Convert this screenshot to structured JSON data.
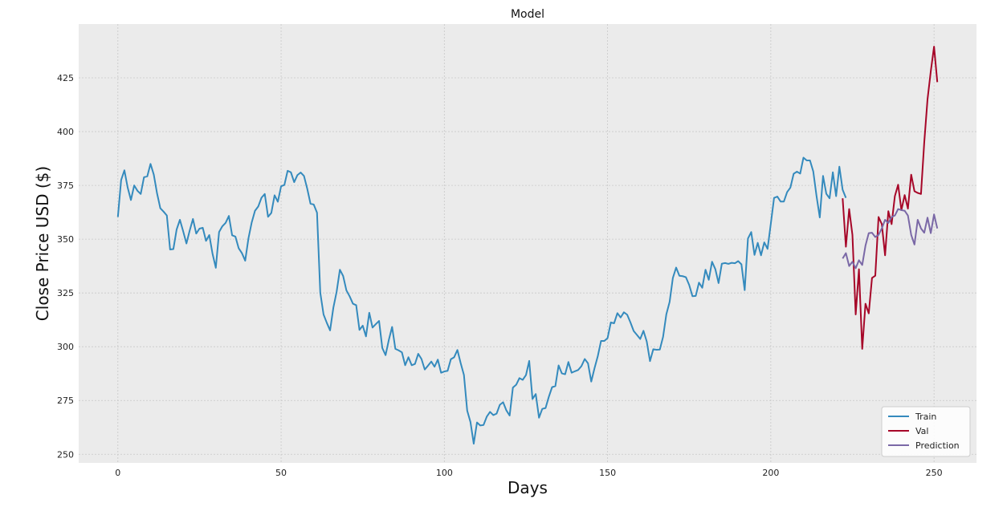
{
  "chart_data": {
    "type": "line",
    "title": "Model",
    "xlabel": "Days",
    "ylabel": "Close Price USD ($)",
    "xlim": [
      -12,
      263
    ],
    "ylim": [
      246,
      450
    ],
    "xticks": [
      0,
      50,
      100,
      150,
      200,
      250
    ],
    "yticks": [
      250,
      275,
      300,
      325,
      350,
      375,
      400,
      425
    ],
    "grid": true,
    "background": "#ebebeb",
    "legend_placement": "lower-right",
    "series": [
      {
        "name": "Train",
        "color": "#348abd",
        "x_start": 0,
        "values": [
          360.3,
          377.5,
          382.0,
          374.0,
          368.2,
          375.0,
          372.5,
          371.0,
          378.8,
          379.2,
          385.0,
          380.0,
          371.3,
          364.4,
          362.8,
          361.0,
          345.2,
          345.4,
          354.5,
          359.0,
          353.7,
          348.0,
          354.0,
          359.4,
          352.6,
          354.9,
          355.3,
          349.2,
          351.9,
          343.2,
          336.7,
          353.3,
          356.0,
          357.6,
          360.8,
          351.8,
          351.2,
          345.8,
          343.5,
          340.0,
          350.4,
          357.8,
          363.2,
          365.2,
          369.3,
          371.0,
          360.4,
          362.2,
          370.4,
          367.4,
          374.6,
          375.2,
          381.8,
          381.1,
          376.5,
          379.8,
          381.0,
          379.4,
          373.5,
          366.5,
          366.1,
          362.3,
          325.1,
          315.0,
          311.1,
          307.6,
          318.1,
          325.5,
          335.8,
          332.9,
          326.2,
          323.4,
          320.0,
          319.3,
          307.8,
          309.8,
          304.8,
          315.8,
          308.9,
          310.5,
          312.0,
          299.4,
          296.1,
          303.2,
          309.2,
          299.0,
          298.3,
          297.4,
          291.4,
          295.1,
          291.4,
          292.0,
          296.7,
          294.3,
          289.4,
          291.2,
          293.1,
          290.7,
          294.0,
          287.9,
          288.5,
          288.8,
          294.2,
          295.1,
          298.5,
          292.4,
          286.9,
          270.3,
          265.0,
          254.9,
          264.8,
          263.4,
          263.6,
          267.5,
          269.7,
          268.2,
          268.9,
          273.0,
          274.2,
          270.4,
          268.0,
          281.0,
          282.3,
          285.4,
          284.6,
          286.8,
          293.4,
          275.7,
          278.0,
          267.0,
          271.1,
          271.5,
          276.7,
          281.2,
          281.7,
          291.3,
          287.6,
          287.2,
          292.9,
          287.9,
          288.6,
          289.2,
          291.0,
          294.3,
          292.3,
          283.8,
          290.0,
          295.6,
          302.7,
          302.7,
          304.0,
          311.3,
          310.9,
          315.6,
          313.6,
          316.0,
          314.9,
          311.3,
          307.3,
          305.5,
          303.6,
          307.4,
          302.4,
          293.3,
          298.8,
          298.6,
          298.7,
          304.6,
          315.1,
          320.8,
          332.0,
          336.8,
          333.0,
          332.8,
          332.3,
          328.7,
          323.5,
          323.6,
          329.8,
          327.4,
          335.8,
          331.1,
          339.5,
          336.1,
          329.6,
          338.6,
          338.9,
          338.5,
          339.0,
          338.8,
          339.8,
          338.3,
          326.3,
          350.3,
          353.3,
          342.7,
          348.3,
          342.5,
          348.5,
          345.5,
          357.2,
          369.2,
          369.8,
          367.5,
          367.5,
          371.9,
          374.0,
          380.4,
          381.4,
          380.5,
          387.9,
          386.6,
          386.6,
          381.5,
          370.1,
          360.1,
          379.4,
          371.1,
          369.0,
          381.1,
          370.0,
          383.7,
          373.0,
          369.2
        ]
      },
      {
        "name": "Val",
        "color": "#a60628",
        "x_start": 222,
        "values": [
          369.0,
          346.5,
          364.0,
          352.0,
          315.0,
          336.0,
          299.0,
          320.0,
          315.5,
          332.0,
          333.0,
          360.3,
          357.0,
          342.5,
          363.0,
          357.0,
          370.0,
          375.3,
          363.5,
          370.5,
          364.2,
          380.0,
          372.3,
          371.5,
          371.0,
          395.0,
          415.0,
          428.0,
          439.5,
          423.0
        ]
      },
      {
        "name": "Prediction",
        "color": "#7a68a6",
        "x_start": 222,
        "values": [
          341.0,
          343.5,
          337.5,
          339.5,
          336.5,
          340.2,
          338.0,
          347.0,
          352.8,
          353.0,
          351.0,
          352.0,
          355.0,
          359.0,
          357.5,
          360.3,
          361.0,
          364.0,
          363.5,
          363.2,
          361.0,
          352.0,
          347.5,
          359.0,
          355.0,
          353.0,
          360.0,
          352.8,
          361.5,
          355.0
        ]
      }
    ]
  }
}
